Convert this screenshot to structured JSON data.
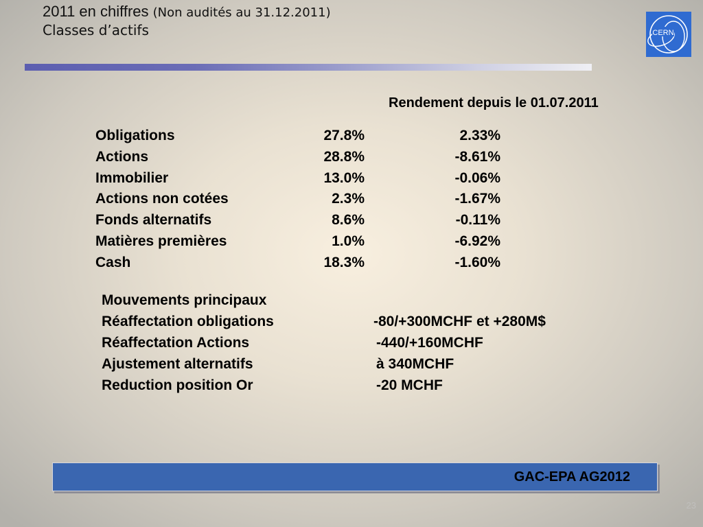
{
  "slide": {
    "title_main": "2011 en chiffres",
    "title_note": "(Non audités au 31.12.2011)",
    "subtitle": "Classes d’actifs",
    "page_number": "23"
  },
  "logo": {
    "text": "CERN",
    "color": "#2f6bd1"
  },
  "performance_header": "Rendement depuis le 01.07.2011",
  "assets": [
    {
      "name": "Obligations",
      "allocation": "27.8%",
      "performance": "2.33%"
    },
    {
      "name": "Actions",
      "allocation": "28.8%",
      "performance": "-8.61%"
    },
    {
      "name": "Immobilier",
      "allocation": "13.0%",
      "performance": "-0.06%"
    },
    {
      "name": "Actions non cotées",
      "allocation": "2.3%",
      "performance": "-1.67%"
    },
    {
      "name": "Fonds alternatifs",
      "allocation": "8.6%",
      "performance": "-0.11%"
    },
    {
      "name": "Matières premières",
      "allocation": "1.0%",
      "performance": "-6.92%"
    },
    {
      "name": "Cash",
      "allocation": "18.3%",
      "performance": "-1.60%"
    }
  ],
  "movements": {
    "heading": "Mouvements principaux",
    "items": [
      {
        "label": "Réaffectation obligations",
        "value": "-80/+300MCHF et +280M$"
      },
      {
        "label": "Réaffectation Actions",
        "value": "-440/+160MCHF"
      },
      {
        "label": "Ajustement alternatifs",
        "value": "à 340MCHF"
      },
      {
        "label": "Reduction position Or",
        "value": "-20 MCHF"
      }
    ]
  },
  "footer": {
    "label": "GAC-EPA AG2012",
    "color": "#3a66b0"
  }
}
